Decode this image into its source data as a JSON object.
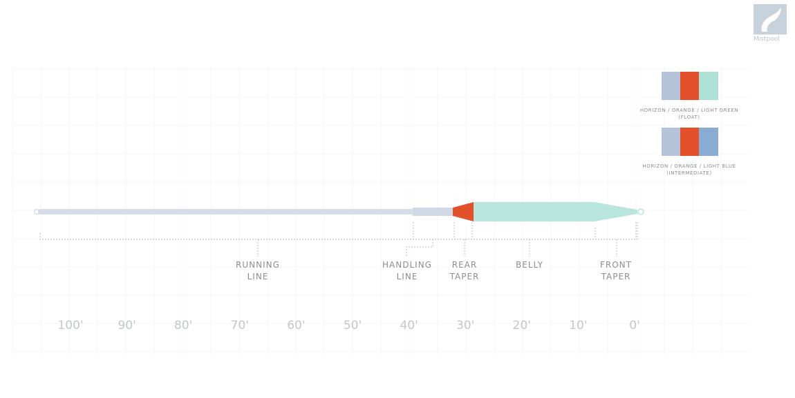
{
  "logo": {
    "text": "Mistpool"
  },
  "colors": {
    "horizon": "#b4c2da",
    "orange": "#e2502c",
    "light_green": "#aee0d6",
    "light_blue": "#8aabd2",
    "running_line": "#d6dce9",
    "belly": "#b8e6dc",
    "guide": "#b9bcc0"
  },
  "swatches": [
    {
      "colors": [
        "#b4c2da",
        "#e2502c",
        "#aee0d6"
      ],
      "label": "HORIZON / ORANGE / LIGHT GREEN",
      "sublabel": "(FLOAT)"
    },
    {
      "colors": [
        "#b4c2da",
        "#e2502c",
        "#8aabd2"
      ],
      "label": "HORIZON / ORANGE / LIGHT BLUE",
      "sublabel": "(INTERMEDIATE)"
    }
  ],
  "sections": [
    {
      "line1": "RUNNING",
      "line2": "LINE"
    },
    {
      "line1": "HANDLING",
      "line2": "LINE"
    },
    {
      "line1": "REAR",
      "line2": "TAPER"
    },
    {
      "line1": "BELLY",
      "line2": ""
    },
    {
      "line1": "FRONT",
      "line2": "TAPER"
    }
  ],
  "scale": [
    "100'",
    "90'",
    "80'",
    "70'",
    "60'",
    "50'",
    "40'",
    "30'",
    "20'",
    "10'",
    "0'"
  ]
}
